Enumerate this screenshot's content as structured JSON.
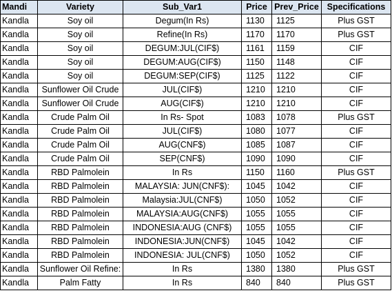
{
  "table": {
    "headers": [
      "Mandi",
      "Variety",
      "Sub_Var1",
      "Price",
      "Prev_Price",
      "Specifications"
    ],
    "rows": [
      [
        "Kandla",
        "Soy oil",
        "Degum(In Rs)",
        "1130",
        "1125",
        "Plus GST"
      ],
      [
        "Kandla",
        "Soy oil",
        "Refine(In Rs)",
        "1170",
        "1170",
        "Plus GST"
      ],
      [
        "Kandla",
        "Soy oil",
        "DEGUM:JUL(CIF$)",
        "1161",
        "1159",
        "CIF"
      ],
      [
        "Kandla",
        "Soy oil",
        "DEGUM:AUG(CIF$)",
        "1150",
        "1148",
        "CIF"
      ],
      [
        "Kandla",
        "Soy oil",
        "DEGUM:SEP(CIF$)",
        "1125",
        "1122",
        "CIF"
      ],
      [
        "Kandla",
        "Sunflower Oil Crude",
        "JUL(CIF$)",
        "1210",
        "1210",
        "CIF"
      ],
      [
        "Kandla",
        "Sunflower Oil Crude",
        "AUG(CIF$)",
        "1210",
        "1210",
        "CIF"
      ],
      [
        "Kandla",
        "Crude Palm Oil",
        "In Rs- Spot",
        "1083",
        "1078",
        "Plus GST"
      ],
      [
        "Kandla",
        "Crude Palm Oil",
        "JUL(CIF$)",
        "1080",
        "1077",
        "CIF"
      ],
      [
        "Kandla",
        "Crude Palm Oil",
        "AUG(CNF$)",
        "1085",
        "1087",
        "CIF"
      ],
      [
        "Kandla",
        "Crude Palm Oil",
        "SEP(CNF$)",
        "1090",
        "1090",
        "CIF"
      ],
      [
        "Kandla",
        "RBD Palmolein",
        "In Rs",
        "1150",
        "1160",
        "Plus GST"
      ],
      [
        "Kandla",
        "RBD Palmolein",
        "MALAYSIA: JUN(CNF$):",
        "1045",
        "1042",
        "CIF"
      ],
      [
        "Kandla",
        "RBD Palmolein",
        "Malaysia:JUL(CNF$)",
        "1050",
        "1052",
        "CIF"
      ],
      [
        "Kandla",
        "RBD Palmolein",
        "MALAYSIA:AUG(CNF$)",
        "1055",
        "1055",
        "CIF"
      ],
      [
        "Kandla",
        "RBD Palmolein",
        "INDONESIA:AUG (CNF$)",
        "1055",
        "1055",
        "CIF"
      ],
      [
        "Kandla",
        "RBD Palmolein",
        "INDONESIA:JUN(CNF$)",
        "1045",
        "1042",
        "CIF"
      ],
      [
        "Kandla",
        "RBD Palmolein",
        "INDONESIA: JUL(CNF$)",
        "1050",
        "1052",
        "CIF"
      ],
      [
        "Kandla",
        "Sunflower Oil Refine:",
        "In Rs",
        "1380",
        "1380",
        "Plus GST"
      ],
      [
        "Kandla",
        "Palm Fatty",
        "In Rs",
        "840",
        "840",
        "Plus GST"
      ]
    ]
  },
  "colors": {
    "header_background": "#dce6f1",
    "grid": "#000000"
  }
}
